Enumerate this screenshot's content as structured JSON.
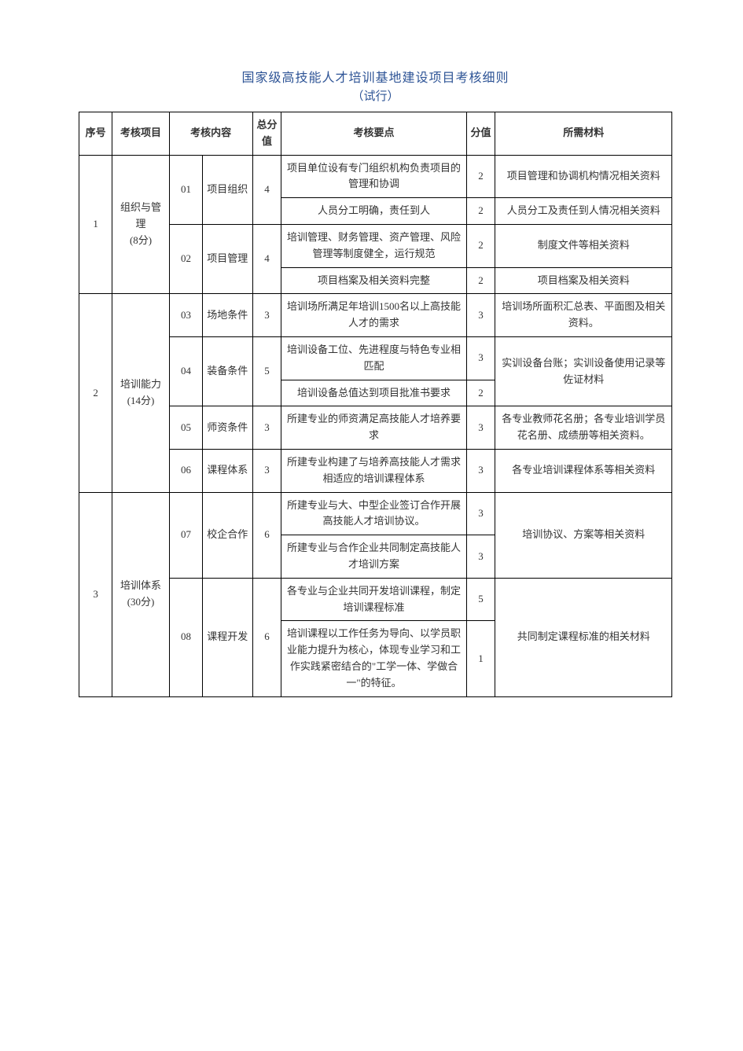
{
  "title": "国家级高技能人才培训基地建设项目考核细则",
  "subtitle": "（试行）",
  "headers": {
    "seq": "序号",
    "project": "考核项目",
    "content": "考核内容",
    "total": "总分值",
    "point": "考核要点",
    "score": "分值",
    "material": "所需材料"
  },
  "sections": [
    {
      "seq": "1",
      "project": "组织与管理\n(8分)",
      "items": [
        {
          "idx": "01",
          "content": "项目组织",
          "total": "4",
          "points": [
            {
              "text": "项目单位设有专门组织机构负责项目的管理和协调",
              "score": "2",
              "material": "项目管理和协调机构情况相关资料"
            },
            {
              "text": "人员分工明确，责任到人",
              "score": "2",
              "material": "人员分工及责任到人情况相关资料"
            }
          ]
        },
        {
          "idx": "02",
          "content": "项目管理",
          "total": "4",
          "points": [
            {
              "text": "培训管理、财务管理、资产管理、风险管理等制度健全，运行规范",
              "score": "2",
              "material": "制度文件等相关资料"
            },
            {
              "text": "项目档案及相关资料完整",
              "score": "2",
              "material": "项目档案及相关资料"
            }
          ]
        }
      ]
    },
    {
      "seq": "2",
      "project": "培训能力\n(14分)",
      "items": [
        {
          "idx": "03",
          "content": "场地条件",
          "total": "3",
          "points": [
            {
              "text": "培训场所满足年培训1500名以上高技能人才的需求",
              "score": "3",
              "material": "培训场所面积汇总表、平面图及相关资料。"
            }
          ]
        },
        {
          "idx": "04",
          "content": "装备条件",
          "total": "5",
          "shared_material": "实训设备台账；实训设备使用记录等佐证材料",
          "points": [
            {
              "text": "培训设备工位、先进程度与特色专业相匹配",
              "score": "3"
            },
            {
              "text": "培训设备总值达到项目批准书要求",
              "score": "2"
            }
          ]
        },
        {
          "idx": "05",
          "content": "师资条件",
          "total": "3",
          "points": [
            {
              "text": "所建专业的师资满足高技能人才培养要求",
              "score": "3",
              "material": "各专业教师花名册；各专业培训学员花名册、成绩册等相关资料。"
            }
          ]
        },
        {
          "idx": "06",
          "content": "课程体系",
          "total": "3",
          "points": [
            {
              "text": "所建专业构建了与培养高技能人才需求相适应的培训课程体系",
              "score": "3",
              "material": "各专业培训课程体系等相关资料"
            }
          ]
        }
      ]
    },
    {
      "seq": "3",
      "project": "培训体系\n(30分)",
      "items": [
        {
          "idx": "07",
          "content": "校企合作",
          "total": "6",
          "shared_material": "培训协议、方案等相关资料",
          "points": [
            {
              "text": "所建专业与大、中型企业签订合作开展高技能人才培训协议。",
              "score": "3"
            },
            {
              "text": "所建专业与合作企业共同制定高技能人才培训方案",
              "score": "3"
            }
          ]
        },
        {
          "idx": "08",
          "content": "课程开发",
          "total": "6",
          "shared_material": "共同制定课程标准的相关材料",
          "points": [
            {
              "text": "各专业与企业共同开发培训课程，制定培训课程标准",
              "score": "5"
            },
            {
              "text": "培训课程以工作任务为导向、以学员职业能力提升为核心，体现专业学习和工作实践紧密结合的\"工学一体、学做合一\"的特征。",
              "score": "1"
            }
          ]
        }
      ]
    }
  ]
}
